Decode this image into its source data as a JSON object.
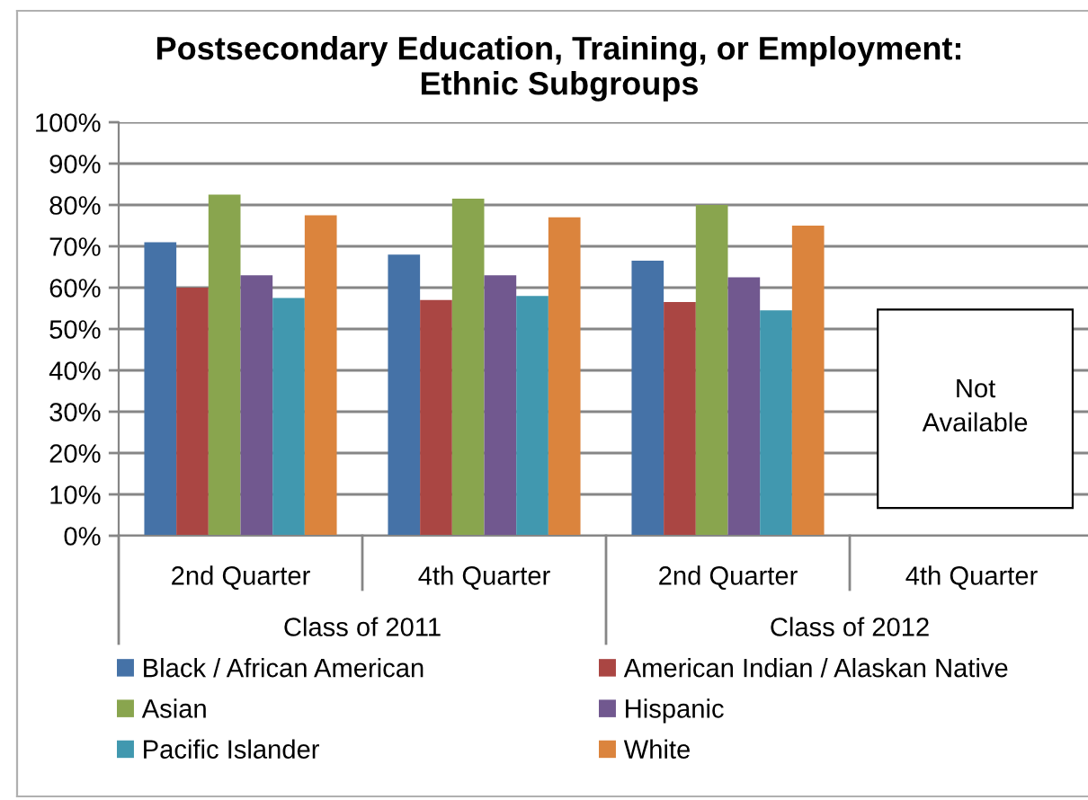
{
  "chart_data": {
    "type": "bar",
    "title": "Postsecondary Education, Training, or Employment:\nEthnic Subgroups",
    "categories": [
      "2nd Quarter",
      "4th Quarter",
      "2nd Quarter",
      "4th Quarter"
    ],
    "series": [
      {
        "name": "Black / African American",
        "color": "#4572a7",
        "values": [
          71,
          68,
          66.5,
          null
        ]
      },
      {
        "name": "American Indian / Alaskan Native",
        "color": "#aa4643",
        "values": [
          60,
          57,
          56.5,
          null
        ]
      },
      {
        "name": "Asian",
        "color": "#89a54e",
        "values": [
          82.5,
          81.5,
          80,
          null
        ]
      },
      {
        "name": "Hispanic",
        "color": "#71588f",
        "values": [
          63,
          63,
          62.5,
          null
        ]
      },
      {
        "name": "Pacific Islander",
        "color": "#4198af",
        "values": [
          57.5,
          58,
          54.5,
          null
        ]
      },
      {
        "name": "White",
        "color": "#db843d",
        "values": [
          77.5,
          77,
          75,
          null
        ]
      }
    ],
    "ylim": [
      0,
      100
    ],
    "yticks": [
      {
        "value": 0,
        "label": "0%"
      },
      {
        "value": 10,
        "label": "10%"
      },
      {
        "value": 20,
        "label": "20%"
      },
      {
        "value": 30,
        "label": "30%"
      },
      {
        "value": 40,
        "label": "40%"
      },
      {
        "value": 50,
        "label": "50%"
      },
      {
        "value": 60,
        "label": "60%"
      },
      {
        "value": 70,
        "label": "70%"
      },
      {
        "value": 80,
        "label": "80%"
      },
      {
        "value": 90,
        "label": "90%"
      },
      {
        "value": 100,
        "label": "100%"
      }
    ],
    "grid": "y",
    "legend": "bottom",
    "annotations": [
      "Class of 2011",
      "Class of 2012",
      "Not\nAvailable"
    ]
  }
}
